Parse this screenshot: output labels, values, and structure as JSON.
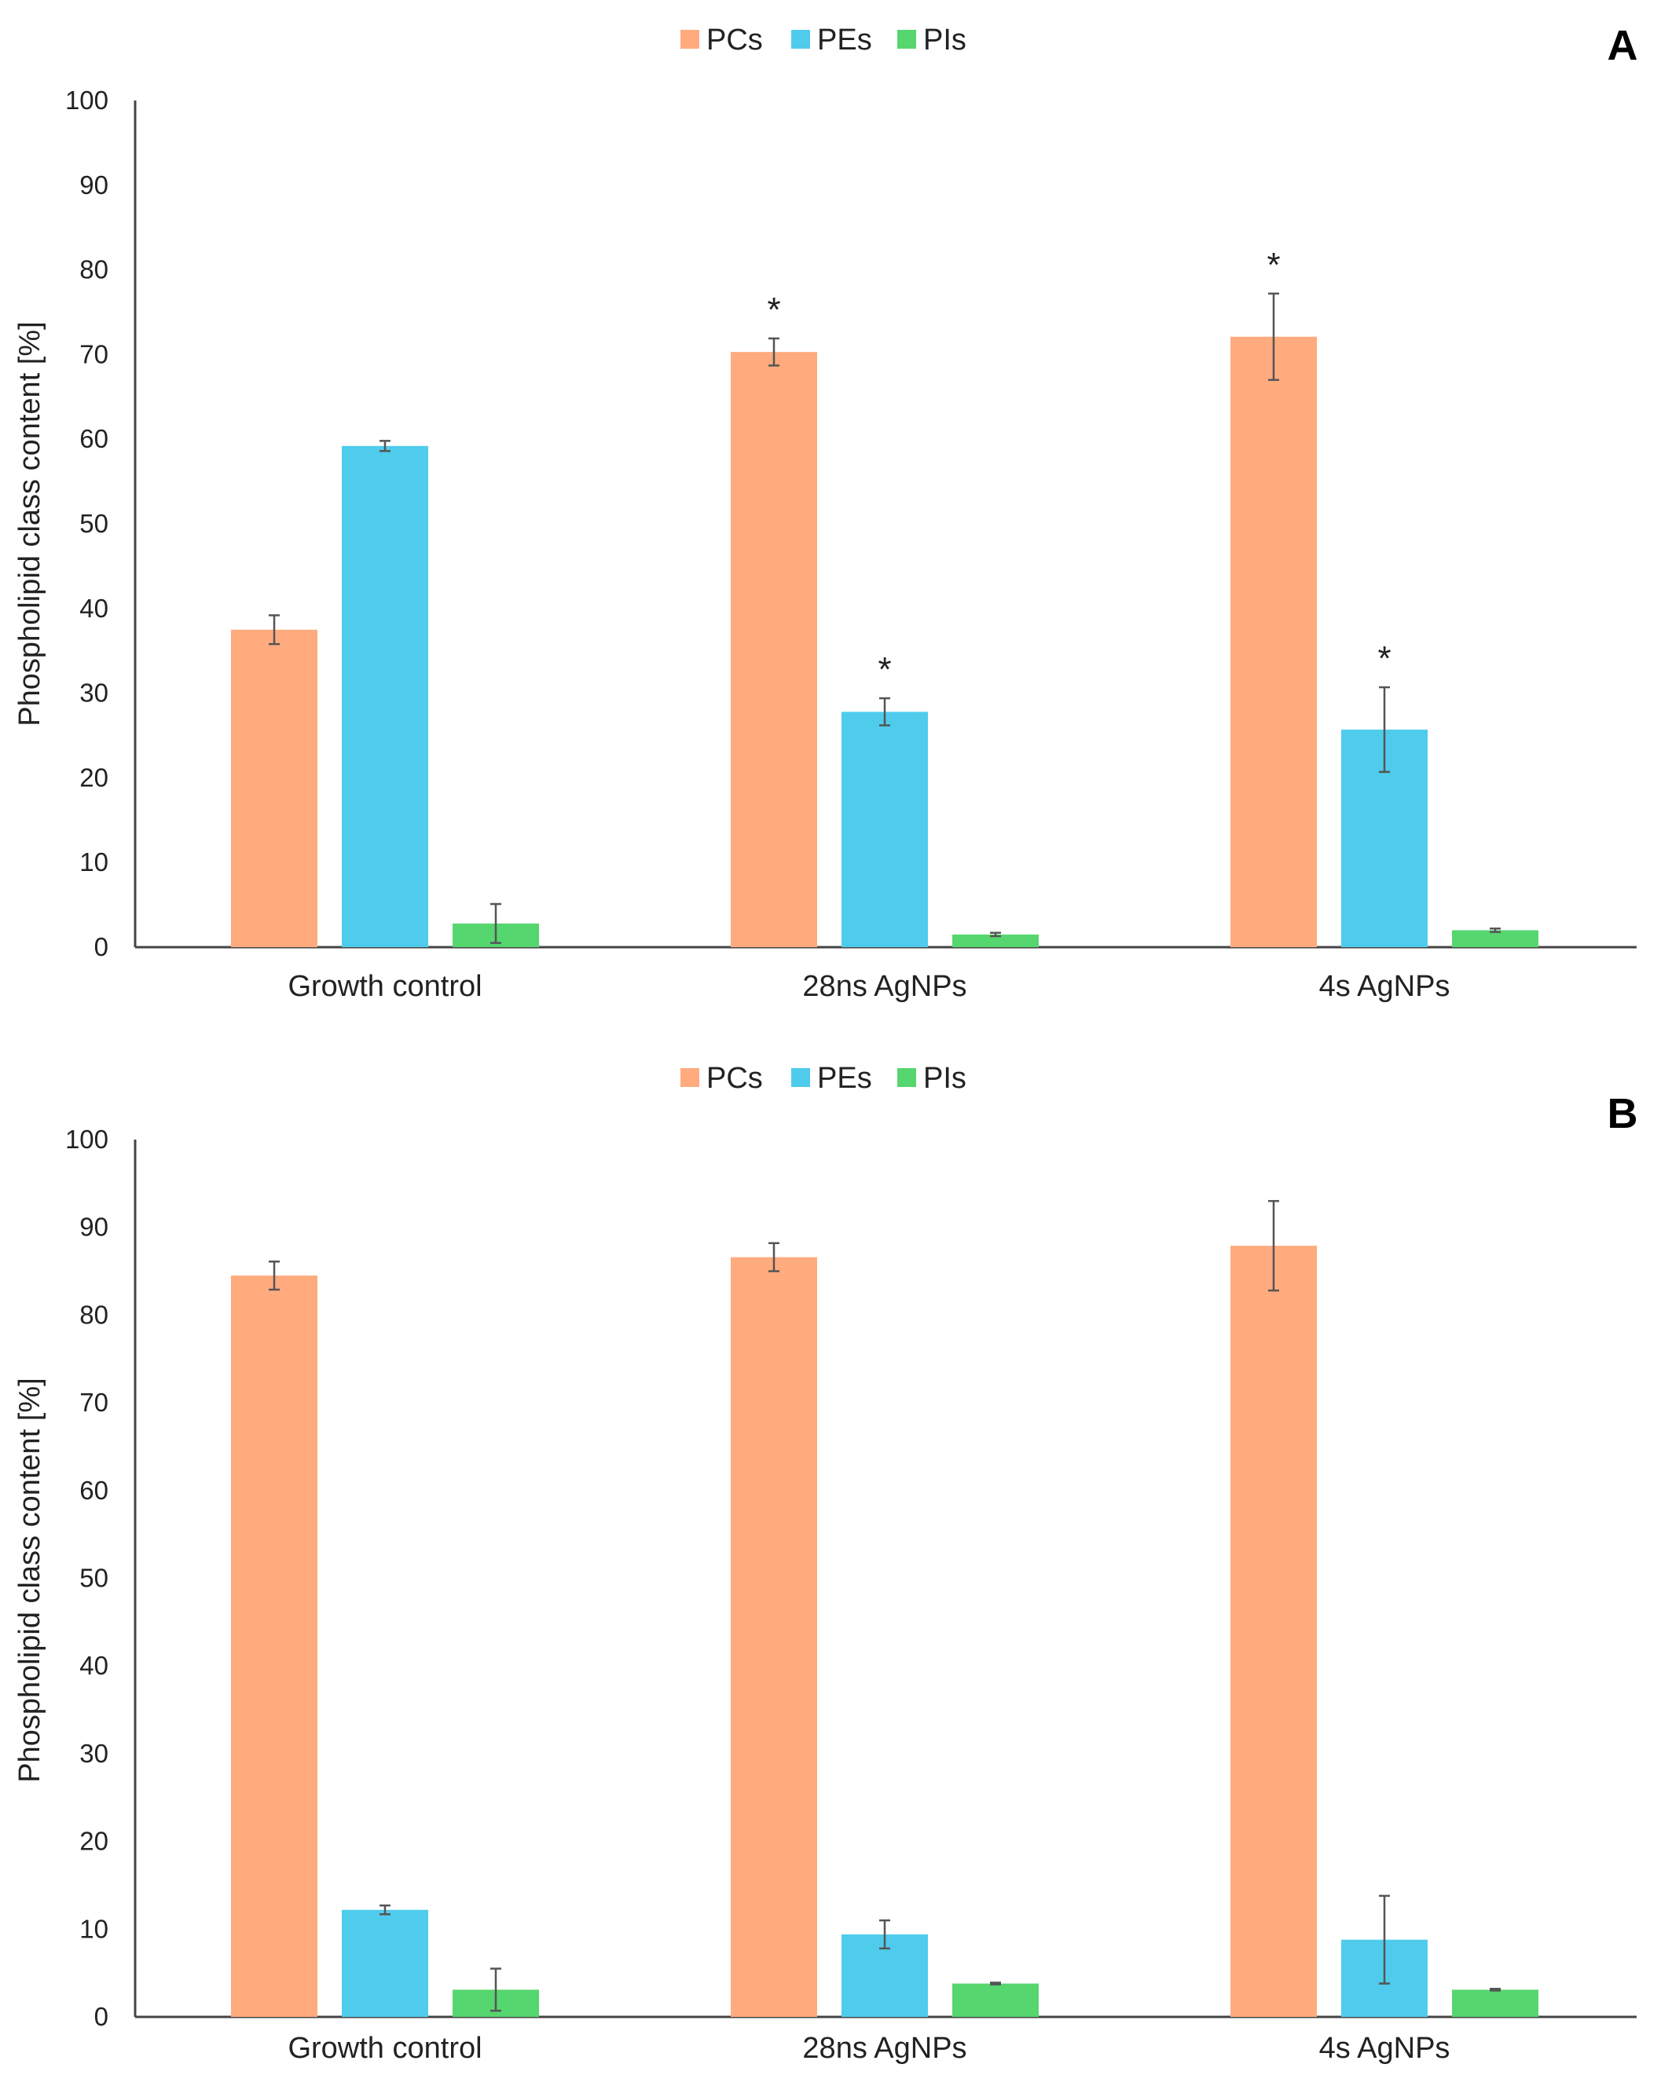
{
  "chart_data": [
    {
      "type": "bar",
      "panel_label": "A",
      "categories": [
        "Growth control",
        "28ns AgNPs",
        "4s AgNPs"
      ],
      "ylabel": "Phospholipid class content [%]",
      "xlabel": "",
      "ylim": [
        0,
        100
      ],
      "yticks": [
        0,
        10,
        20,
        30,
        40,
        50,
        60,
        70,
        80,
        90,
        100
      ],
      "legend_position": "top-center",
      "series": [
        {
          "name": "PCs",
          "color": "#FFAB7E",
          "values": [
            37.5,
            70.3,
            72.1
          ],
          "errors": [
            1.7,
            1.6,
            5.1
          ],
          "significant": [
            false,
            true,
            true
          ]
        },
        {
          "name": "PEs",
          "color": "#4FCCEC",
          "values": [
            59.2,
            27.8,
            25.7
          ],
          "errors": [
            0.6,
            1.6,
            5.0
          ],
          "significant": [
            false,
            true,
            true
          ]
        },
        {
          "name": "PIs",
          "color": "#56D66E",
          "values": [
            2.8,
            1.5,
            2.0
          ],
          "errors": [
            2.3,
            0.2,
            0.2
          ],
          "significant": [
            false,
            false,
            false
          ]
        }
      ],
      "significance_marker": "*"
    },
    {
      "type": "bar",
      "panel_label": "B",
      "categories": [
        "Growth control",
        "28ns AgNPs",
        "4s AgNPs"
      ],
      "ylabel": "Phospholipid class content [%]",
      "xlabel": "",
      "ylim": [
        0,
        100
      ],
      "yticks": [
        0,
        10,
        20,
        30,
        40,
        50,
        60,
        70,
        80,
        90,
        100
      ],
      "legend_position": "top-center",
      "series": [
        {
          "name": "PCs",
          "color": "#FFAB7E",
          "values": [
            84.5,
            86.6,
            87.9
          ],
          "errors": [
            1.6,
            1.6,
            5.1
          ],
          "significant": [
            false,
            false,
            false
          ]
        },
        {
          "name": "PEs",
          "color": "#4FCCEC",
          "values": [
            12.2,
            9.4,
            8.8
          ],
          "errors": [
            0.5,
            1.6,
            5.0
          ],
          "significant": [
            false,
            false,
            false
          ]
        },
        {
          "name": "PIs",
          "color": "#56D66E",
          "values": [
            3.1,
            3.8,
            3.1
          ],
          "errors": [
            2.4,
            0.1,
            0.1
          ],
          "significant": [
            false,
            false,
            false
          ]
        }
      ],
      "significance_marker": "*"
    }
  ]
}
